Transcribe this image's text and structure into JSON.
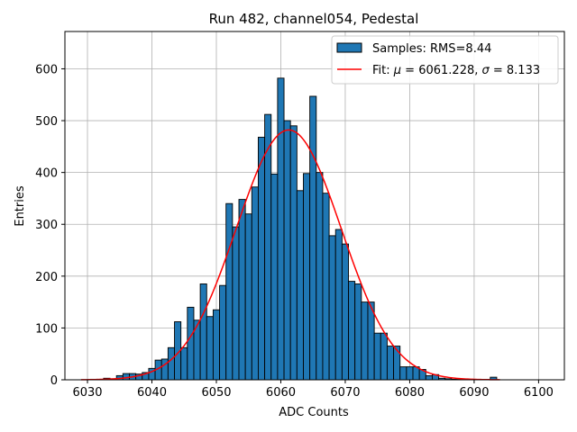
{
  "chart_data": {
    "type": "bar",
    "title": "Run 482, channel054, Pedestal",
    "xlabel": "ADC Counts",
    "ylabel": "Entries",
    "xlim": [
      6026.5,
      6104.0
    ],
    "ylim": [
      0,
      672
    ],
    "grid": true,
    "legend_position": "top-right",
    "bin_width": 1,
    "x_ticks": [
      6030,
      6040,
      6050,
      6060,
      6070,
      6080,
      6090,
      6100
    ],
    "y_ticks": [
      0,
      100,
      200,
      300,
      400,
      500,
      600
    ],
    "x_tick_labels": [
      "6030",
      "6040",
      "6050",
      "6060",
      "6070",
      "6080",
      "6090",
      "6100"
    ],
    "y_tick_labels": [
      "0",
      "100",
      "200",
      "300",
      "400",
      "500",
      "600"
    ],
    "bins": [
      {
        "x": 6029,
        "y": 0
      },
      {
        "x": 6030,
        "y": 0
      },
      {
        "x": 6031,
        "y": 1
      },
      {
        "x": 6032,
        "y": 1
      },
      {
        "x": 6033,
        "y": 3
      },
      {
        "x": 6034,
        "y": 2
      },
      {
        "x": 6035,
        "y": 8
      },
      {
        "x": 6036,
        "y": 12
      },
      {
        "x": 6037,
        "y": 12
      },
      {
        "x": 6038,
        "y": 11
      },
      {
        "x": 6039,
        "y": 14
      },
      {
        "x": 6040,
        "y": 22
      },
      {
        "x": 6041,
        "y": 38
      },
      {
        "x": 6042,
        "y": 40
      },
      {
        "x": 6043,
        "y": 62
      },
      {
        "x": 6044,
        "y": 112
      },
      {
        "x": 6045,
        "y": 62
      },
      {
        "x": 6046,
        "y": 140
      },
      {
        "x": 6047,
        "y": 115
      },
      {
        "x": 6048,
        "y": 185
      },
      {
        "x": 6049,
        "y": 122
      },
      {
        "x": 6050,
        "y": 135
      },
      {
        "x": 6051,
        "y": 182
      },
      {
        "x": 6052,
        "y": 340
      },
      {
        "x": 6053,
        "y": 295
      },
      {
        "x": 6054,
        "y": 348
      },
      {
        "x": 6055,
        "y": 320
      },
      {
        "x": 6056,
        "y": 372
      },
      {
        "x": 6057,
        "y": 468
      },
      {
        "x": 6058,
        "y": 512
      },
      {
        "x": 6059,
        "y": 397
      },
      {
        "x": 6060,
        "y": 582
      },
      {
        "x": 6061,
        "y": 500
      },
      {
        "x": 6062,
        "y": 490
      },
      {
        "x": 6063,
        "y": 365
      },
      {
        "x": 6064,
        "y": 398
      },
      {
        "x": 6065,
        "y": 547
      },
      {
        "x": 6066,
        "y": 400
      },
      {
        "x": 6067,
        "y": 360
      },
      {
        "x": 6068,
        "y": 278
      },
      {
        "x": 6069,
        "y": 290
      },
      {
        "x": 6070,
        "y": 262
      },
      {
        "x": 6071,
        "y": 190
      },
      {
        "x": 6072,
        "y": 185
      },
      {
        "x": 6073,
        "y": 150
      },
      {
        "x": 6074,
        "y": 150
      },
      {
        "x": 6075,
        "y": 90
      },
      {
        "x": 6076,
        "y": 90
      },
      {
        "x": 6077,
        "y": 65
      },
      {
        "x": 6078,
        "y": 65
      },
      {
        "x": 6079,
        "y": 25
      },
      {
        "x": 6080,
        "y": 25
      },
      {
        "x": 6081,
        "y": 25
      },
      {
        "x": 6082,
        "y": 20
      },
      {
        "x": 6083,
        "y": 8
      },
      {
        "x": 6084,
        "y": 10
      },
      {
        "x": 6085,
        "y": 3
      },
      {
        "x": 6086,
        "y": 2
      },
      {
        "x": 6087,
        "y": 1
      },
      {
        "x": 6088,
        "y": 1
      },
      {
        "x": 6089,
        "y": 0
      },
      {
        "x": 6090,
        "y": 0
      },
      {
        "x": 6091,
        "y": 0
      },
      {
        "x": 6092,
        "y": 0
      },
      {
        "x": 6093,
        "y": 5
      }
    ],
    "fit": {
      "type": "gaussian",
      "mu": 6061.228,
      "sigma": 8.133,
      "amplitude": 482,
      "x_range": [
        6029,
        6094
      ]
    },
    "colors": {
      "bar_fill": "#1f77b4",
      "bar_edge": "#000000",
      "fit_line": "#ff0000",
      "grid": "#b0b0b0"
    },
    "legend": {
      "samples_label": "Samples: RMS=8.44",
      "fit_prefix": "Fit: ",
      "fit_mu_symbol": "μ",
      "fit_mu_rest": " = 6061.228, ",
      "fit_sigma_symbol": "σ",
      "fit_sigma_rest": " = 8.133"
    }
  }
}
